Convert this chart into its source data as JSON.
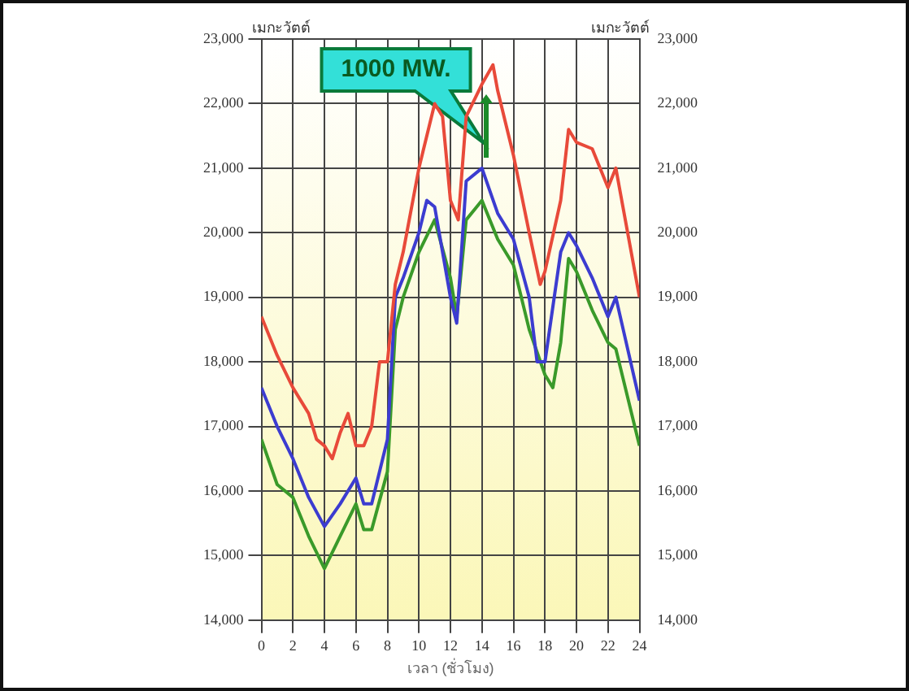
{
  "chart_data": {
    "type": "line",
    "xlabel": "เวลา (ชั่วโมง)",
    "ylabel": "เมกะวัตต์",
    "y2label": "เมกะวัตต์",
    "annotations": [
      {
        "text": "1000 MW.",
        "x": 14.3,
        "y": 22150
      }
    ],
    "xlim": [
      0,
      24
    ],
    "xticks": [
      0,
      2,
      4,
      6,
      8,
      10,
      12,
      14,
      16,
      18,
      20,
      22,
      24
    ],
    "ylim": [
      14000,
      23000
    ],
    "yticks": [
      {
        "value": 14000,
        "label": "14,000"
      },
      {
        "value": 15000,
        "label": "15,000"
      },
      {
        "value": 16000,
        "label": "16,000"
      },
      {
        "value": 17000,
        "label": "17,000"
      },
      {
        "value": 18000,
        "label": "18,000"
      },
      {
        "value": 19000,
        "label": "19,000"
      },
      {
        "value": 20000,
        "label": "20,000"
      },
      {
        "value": 21000,
        "label": "21,000"
      },
      {
        "value": 22000,
        "label": "22,000"
      },
      {
        "value": 23000,
        "label": "23,000"
      }
    ],
    "y2lim": [
      14000,
      23000
    ],
    "y2ticks": [
      {
        "value": 14000,
        "label": "14,000"
      },
      {
        "value": 15000,
        "label": "15,000"
      },
      {
        "value": 16000,
        "label": "16,000"
      },
      {
        "value": 17000,
        "label": "17,000"
      },
      {
        "value": 18000,
        "label": "18,000"
      },
      {
        "value": 19000,
        "label": "19,000"
      },
      {
        "value": 20000,
        "label": "20,000"
      },
      {
        "value": 21000,
        "label": "21,000"
      },
      {
        "value": 22000,
        "label": "22,000"
      },
      {
        "value": 23000,
        "label": "23,000"
      }
    ],
    "grid": true,
    "legend": false,
    "marker": "none",
    "line_style": "solid",
    "series": [
      {
        "color": "#e84a3a",
        "x": [
          0,
          1,
          2,
          3,
          3.5,
          4,
          4.5,
          5,
          5.5,
          6,
          6.5,
          7,
          7.5,
          8,
          8.5,
          9,
          10,
          11,
          11.5,
          12,
          12.5,
          13,
          14,
          14.7,
          15,
          16,
          17,
          17.7,
          18,
          19,
          19.5,
          20,
          21,
          22,
          22.5,
          24
        ],
        "values": [
          18700,
          18100,
          17600,
          17200,
          16800,
          16700,
          16500,
          16900,
          17200,
          16700,
          16700,
          17000,
          18000,
          18000,
          19200,
          19700,
          21000,
          22000,
          21800,
          20500,
          20200,
          21800,
          22300,
          22600,
          22200,
          21200,
          20000,
          19200,
          19400,
          20500,
          21600,
          21400,
          21300,
          20700,
          21000,
          19000
        ]
      },
      {
        "color": "#3c3cd0",
        "x": [
          0,
          1,
          2,
          3,
          4,
          5,
          6,
          6.5,
          7,
          8,
          8.5,
          9,
          10,
          10.5,
          11,
          12,
          12.4,
          13,
          14,
          15,
          16,
          17,
          17.5,
          18,
          19,
          19.5,
          20,
          21,
          22,
          22.5,
          24
        ],
        "values": [
          17600,
          17000,
          16500,
          15900,
          15450,
          15800,
          16200,
          15800,
          15800,
          16800,
          19000,
          19300,
          20000,
          20500,
          20400,
          19000,
          18600,
          20800,
          21000,
          20300,
          19900,
          19000,
          18000,
          18000,
          19700,
          20000,
          19800,
          19300,
          18700,
          19000,
          17400
        ]
      },
      {
        "color": "#3a9a2a",
        "x": [
          0,
          1,
          2,
          3,
          4,
          5,
          6,
          6.5,
          7,
          8,
          8.5,
          9,
          10,
          11,
          12,
          12.4,
          13,
          14,
          15,
          16,
          17,
          18,
          18.5,
          19,
          19.5,
          20,
          21,
          22,
          22.5,
          24
        ],
        "values": [
          16800,
          16100,
          15900,
          15300,
          14800,
          15300,
          15800,
          15400,
          15400,
          16300,
          18500,
          19000,
          19700,
          20200,
          19300,
          18700,
          20200,
          20500,
          19900,
          19500,
          18500,
          17800,
          17600,
          18300,
          19600,
          19400,
          18800,
          18300,
          18200,
          16700
        ]
      }
    ]
  }
}
